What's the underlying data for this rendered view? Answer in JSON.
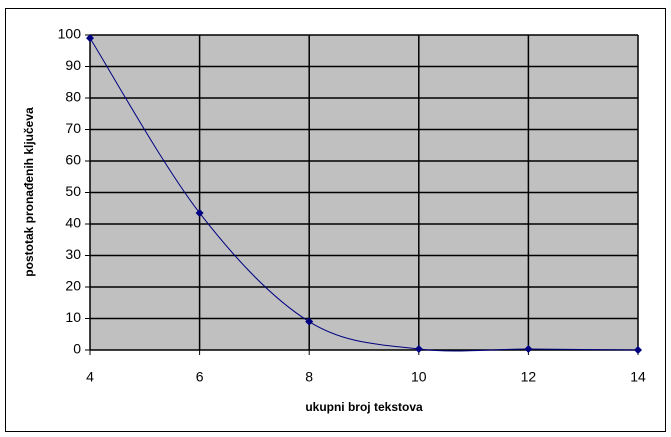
{
  "chart_data": {
    "type": "line",
    "xlabel": "ukupni broj tekstova",
    "ylabel": "postotak pronađenih ključeva",
    "x": [
      4,
      6,
      8,
      10,
      12,
      14
    ],
    "series": [
      {
        "color": "#000080",
        "values": [
          99,
          43.5,
          9,
          0.3,
          0.3,
          0
        ]
      }
    ],
    "xlim": [
      4,
      14
    ],
    "xticks": [
      4,
      6,
      8,
      10,
      12,
      14
    ],
    "ylim": [
      0,
      100
    ],
    "yticks": [
      0,
      10,
      20,
      30,
      40,
      50,
      60,
      70,
      80,
      90,
      100
    ],
    "grid": true,
    "plot_background": "#c0c0c0"
  }
}
